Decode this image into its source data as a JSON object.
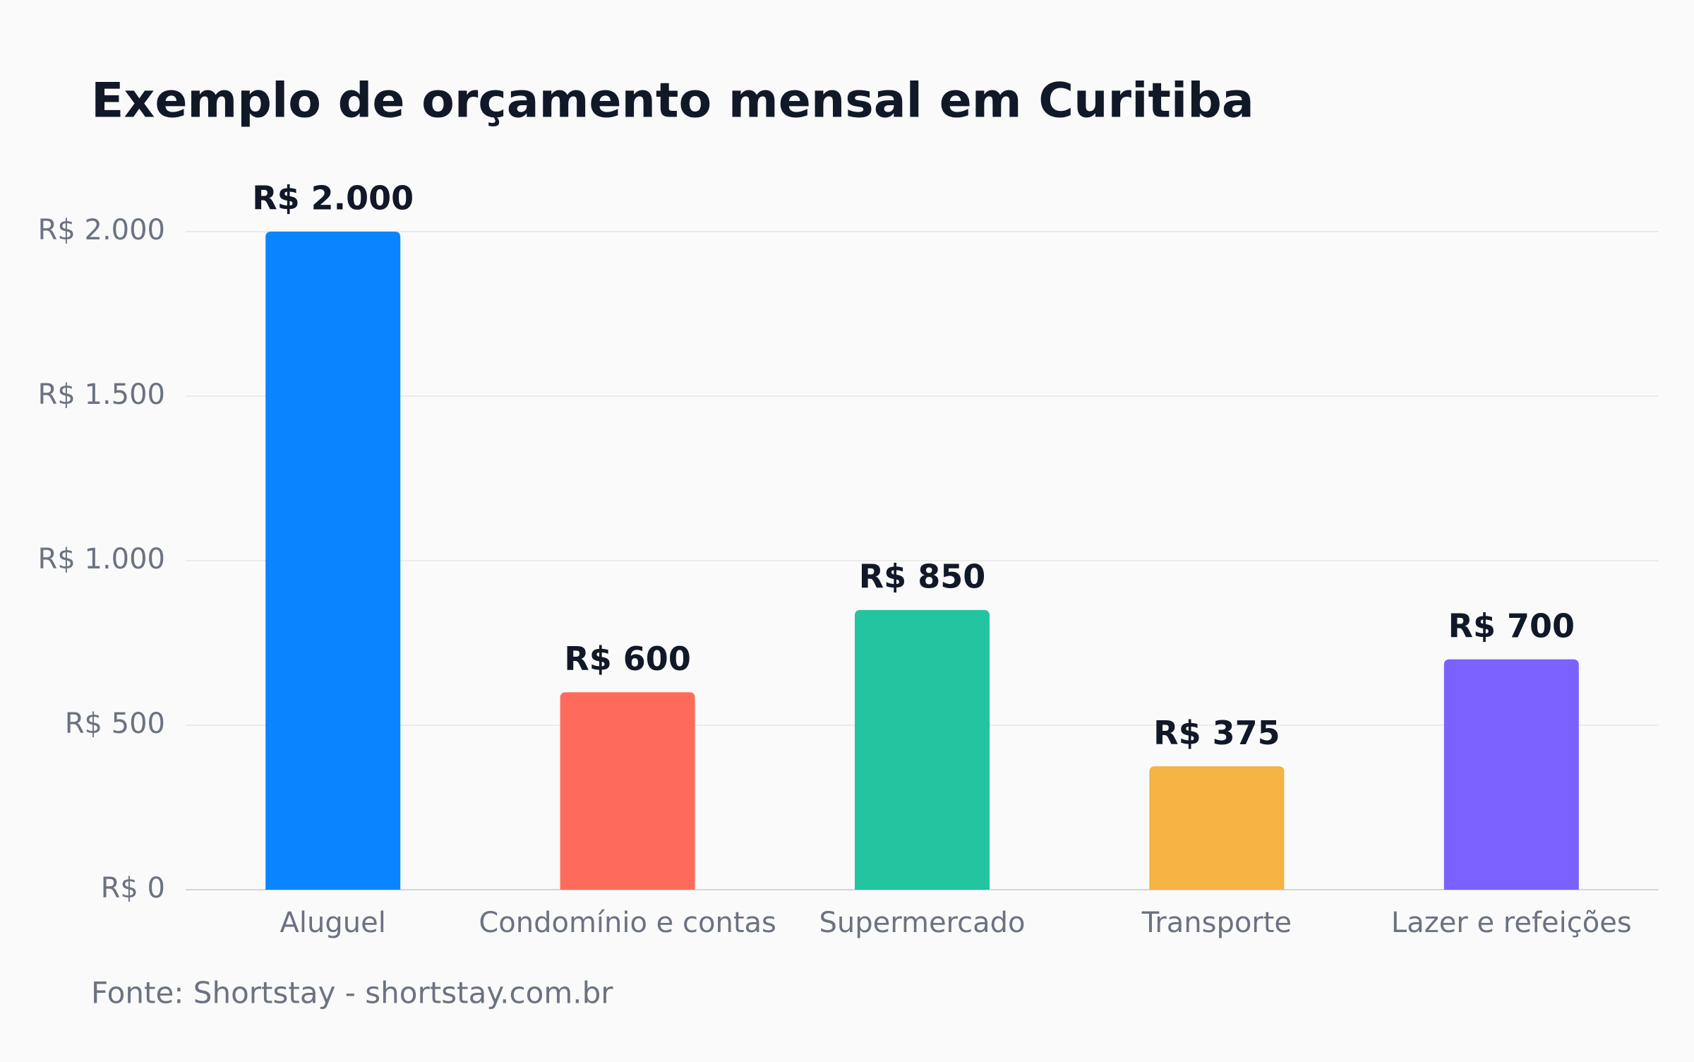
{
  "chart_data": {
    "type": "bar",
    "title": "Exemplo de orçamento mensal em Curitiba",
    "categories": [
      "Aluguel",
      "Condomínio e contas",
      "Supermercado",
      "Transporte",
      "Lazer e refeições"
    ],
    "values": [
      2000,
      600,
      850,
      375,
      700
    ],
    "value_labels": [
      "R$ 2.000",
      "R$ 600",
      "R$ 850",
      "R$ 375",
      "R$ 700"
    ],
    "colors": [
      "#0a84ff",
      "#ff6b5b",
      "#22c59f",
      "#f4b342",
      "#7b61ff"
    ],
    "ylim": [
      0,
      2000
    ],
    "yticks": [
      {
        "value": 0,
        "label": "R$ 0"
      },
      {
        "value": 500,
        "label": "R$ 500"
      },
      {
        "value": 1000,
        "label": "R$ 1.000"
      },
      {
        "value": 1500,
        "label": "R$ 1.500"
      },
      {
        "value": 2000,
        "label": "R$ 2.000"
      }
    ],
    "grid": true,
    "source": "Fonte: Shortstay - shortstay.com.br"
  }
}
